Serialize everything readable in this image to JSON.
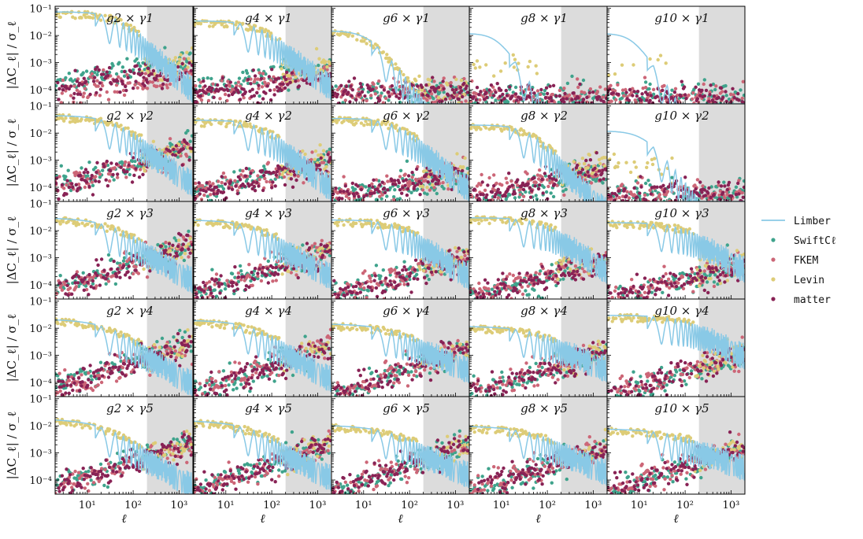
{
  "chart_data": {
    "type": "scatter",
    "layout": "5x5 panel grid",
    "ylabel": "|ΔC_ℓ| / σ_ℓ",
    "xlabel": "ℓ",
    "xscale": "log",
    "yscale": "log",
    "xlim": [
      2,
      2000
    ],
    "ylim": [
      3e-05,
      0.12
    ],
    "x_ticks": [
      {
        "value": 10,
        "label": "10¹"
      },
      {
        "value": 100,
        "label": "10²"
      },
      {
        "value": 1000,
        "label": "10³"
      }
    ],
    "y_ticks": [
      {
        "value": 0.0001,
        "label": "10⁻⁴"
      },
      {
        "value": 0.001,
        "label": "10⁻³"
      },
      {
        "value": 0.01,
        "label": "10⁻²"
      },
      {
        "value": 0.1,
        "label": "10⁻¹"
      }
    ],
    "shaded_region": {
      "ell_min": 200,
      "ell_max": 2000,
      "color": "#dcdcdc"
    },
    "legend": {
      "placement": "right",
      "entries": [
        {
          "key": "limber",
          "label": "Limber",
          "kind": "line",
          "color": "#89c9e6"
        },
        {
          "key": "swift",
          "label": "SwiftCℓ",
          "kind": "point",
          "color": "#3fa38c"
        },
        {
          "key": "fkem",
          "label": "FKEM",
          "kind": "point",
          "color": "#cc6677"
        },
        {
          "key": "levin",
          "label": "Levin",
          "kind": "point",
          "color": "#ddcc77"
        },
        {
          "key": "matter",
          "label": "matter",
          "kind": "point",
          "color": "#882255"
        }
      ]
    },
    "panels": [
      {
        "row": 0,
        "col": 0,
        "title": "g2 × γ1",
        "limber": {
          "a": 0.075,
          "ell0": 50,
          "p": 1.5
        },
        "swift": {
          "A": 0.00028,
          "s": 0.3
        },
        "fkem": {
          "A": 0.00013,
          "s": 0.15
        },
        "levin": {
          "A": 0.0003,
          "s": 0.25
        },
        "matter": {
          "A": 0.00018,
          "s": 0.18
        }
      },
      {
        "row": 0,
        "col": 1,
        "title": "g4 × γ1",
        "limber": {
          "a": 0.035,
          "ell0": 60,
          "p": 1.3
        },
        "swift": {
          "A": 0.00015,
          "s": 0.3
        },
        "fkem": {
          "A": 0.00011,
          "s": 0.25
        },
        "levin": {
          "A": 0.00018,
          "s": 0.3
        },
        "matter": {
          "A": 0.0001,
          "s": 0.25
        }
      },
      {
        "row": 0,
        "col": 2,
        "title": "g6 × γ1",
        "limber": {
          "a": 0.015,
          "ell0": 12,
          "p": 2.0
        },
        "swift": {
          "A": 6e-05,
          "s": 0.05
        },
        "fkem": {
          "A": 7e-05,
          "s": 0.05
        },
        "levin": {
          "A": 8e-05,
          "s": 0.05
        },
        "matter": {
          "A": 7e-05,
          "s": 0.05
        }
      },
      {
        "row": 0,
        "col": 3,
        "title": "g8 × γ1",
        "limber": {
          "a": 0.012,
          "ell0": 8,
          "p": 2.5
        },
        "swift": {
          "A": 5e-05,
          "s": 0.0
        },
        "fkem": {
          "A": 5e-05,
          "s": 0.0
        },
        "levin": {
          "A": 0.0008,
          "s": 0.0
        },
        "matter": {
          "A": 5e-05,
          "s": 0.0
        }
      },
      {
        "row": 0,
        "col": 4,
        "title": "g10 × γ1",
        "limber": {
          "a": 0.012,
          "ell0": 7,
          "p": 2.5
        },
        "swift": {
          "A": 5e-05,
          "s": 0.0
        },
        "fkem": {
          "A": 5e-05,
          "s": 0.0
        },
        "levin": {
          "A": 0.0008,
          "s": 0.0
        },
        "matter": {
          "A": 5e-05,
          "s": 0.0
        }
      },
      {
        "row": 1,
        "col": 0,
        "title": "g2 × γ2",
        "limber": {
          "a": 0.045,
          "ell0": 40,
          "p": 1.2
        },
        "swift": {
          "A": 0.00025,
          "s": 0.5
        },
        "fkem": {
          "A": 0.0002,
          "s": 0.5
        },
        "levin": {
          "A": 0.00022,
          "s": 0.5
        },
        "matter": {
          "A": 0.0002,
          "s": 0.5
        }
      },
      {
        "row": 1,
        "col": 1,
        "title": "g4 × γ2",
        "limber": {
          "a": 0.03,
          "ell0": 70,
          "p": 1.4
        },
        "swift": {
          "A": 0.00012,
          "s": 0.4
        },
        "fkem": {
          "A": 0.00012,
          "s": 0.4
        },
        "levin": {
          "A": 0.00015,
          "s": 0.4
        },
        "matter": {
          "A": 0.0001,
          "s": 0.4
        }
      },
      {
        "row": 1,
        "col": 2,
        "title": "g6 × γ2",
        "limber": {
          "a": 0.035,
          "ell0": 60,
          "p": 1.4
        },
        "swift": {
          "A": 6e-05,
          "s": 0.3
        },
        "fkem": {
          "A": 8e-05,
          "s": 0.3
        },
        "levin": {
          "A": 0.0001,
          "s": 0.3
        },
        "matter": {
          "A": 7e-05,
          "s": 0.3
        }
      },
      {
        "row": 1,
        "col": 3,
        "title": "g8 × γ2",
        "limber": {
          "a": 0.02,
          "ell0": 40,
          "p": 1.6
        },
        "swift": {
          "A": 4e-05,
          "s": 0.45
        },
        "fkem": {
          "A": 8e-05,
          "s": 0.35
        },
        "levin": {
          "A": 0.0001,
          "s": 0.4
        },
        "matter": {
          "A": 6e-05,
          "s": 0.4
        }
      },
      {
        "row": 1,
        "col": 4,
        "title": "g10 × γ2",
        "limber": {
          "a": 0.012,
          "ell0": 12,
          "p": 2.0
        },
        "swift": {
          "A": 5e-05,
          "s": 0.0
        },
        "fkem": {
          "A": 5e-05,
          "s": 0.0
        },
        "levin": {
          "A": 0.0006,
          "s": 0.0
        },
        "matter": {
          "A": 6e-05,
          "s": 0.0
        }
      },
      {
        "row": 2,
        "col": 0,
        "title": "g2 × γ3",
        "limber": {
          "a": 0.03,
          "ell0": 30,
          "p": 1.0
        },
        "swift": {
          "A": 0.0002,
          "s": 0.55
        },
        "fkem": {
          "A": 0.00015,
          "s": 0.55
        },
        "levin": {
          "A": 0.00018,
          "s": 0.55
        },
        "matter": {
          "A": 0.00016,
          "s": 0.55
        }
      },
      {
        "row": 2,
        "col": 1,
        "title": "g4 × γ3",
        "limber": {
          "a": 0.025,
          "ell0": 50,
          "p": 1.0
        },
        "swift": {
          "A": 0.0001,
          "s": 0.55
        },
        "fkem": {
          "A": 0.0001,
          "s": 0.55
        },
        "levin": {
          "A": 0.00012,
          "s": 0.55
        },
        "matter": {
          "A": 9e-05,
          "s": 0.55
        }
      },
      {
        "row": 2,
        "col": 2,
        "title": "g6 × γ3",
        "limber": {
          "a": 0.025,
          "ell0": 90,
          "p": 1.2
        },
        "swift": {
          "A": 8e-05,
          "s": 0.5
        },
        "fkem": {
          "A": 8e-05,
          "s": 0.5
        },
        "levin": {
          "A": 0.0001,
          "s": 0.5
        },
        "matter": {
          "A": 7e-05,
          "s": 0.5
        }
      },
      {
        "row": 2,
        "col": 3,
        "title": "g8 × γ3",
        "limber": {
          "a": 0.03,
          "ell0": 120,
          "p": 1.2
        },
        "swift": {
          "A": 6e-05,
          "s": 0.5
        },
        "fkem": {
          "A": 8e-05,
          "s": 0.45
        },
        "levin": {
          "A": 0.0001,
          "s": 0.45
        },
        "matter": {
          "A": 7e-05,
          "s": 0.45
        }
      },
      {
        "row": 2,
        "col": 4,
        "title": "g10 × γ3",
        "limber": {
          "a": 0.02,
          "ell0": 150,
          "p": 1.1
        },
        "swift": {
          "A": 5e-05,
          "s": 0.45
        },
        "fkem": {
          "A": 7e-05,
          "s": 0.4
        },
        "levin": {
          "A": 0.0001,
          "s": 0.4
        },
        "matter": {
          "A": 6e-05,
          "s": 0.4
        }
      },
      {
        "row": 3,
        "col": 0,
        "title": "g2 × γ4",
        "limber": {
          "a": 0.022,
          "ell0": 25,
          "p": 1.0
        },
        "swift": {
          "A": 0.00018,
          "s": 0.55
        },
        "fkem": {
          "A": 0.00012,
          "s": 0.55
        },
        "levin": {
          "A": 0.00015,
          "s": 0.55
        },
        "matter": {
          "A": 0.00013,
          "s": 0.55
        }
      },
      {
        "row": 3,
        "col": 1,
        "title": "g4 × γ4",
        "limber": {
          "a": 0.02,
          "ell0": 40,
          "p": 1.0
        },
        "swift": {
          "A": 0.0001,
          "s": 0.6
        },
        "fkem": {
          "A": 0.0001,
          "s": 0.6
        },
        "levin": {
          "A": 0.00011,
          "s": 0.6
        },
        "matter": {
          "A": 9e-05,
          "s": 0.6
        }
      },
      {
        "row": 3,
        "col": 2,
        "title": "g6 × γ4",
        "limber": {
          "a": 0.015,
          "ell0": 60,
          "p": 0.8
        },
        "swift": {
          "A": 8e-05,
          "s": 0.6
        },
        "fkem": {
          "A": 8e-05,
          "s": 0.6
        },
        "levin": {
          "A": 9e-05,
          "s": 0.6
        },
        "matter": {
          "A": 8e-05,
          "s": 0.6
        }
      },
      {
        "row": 3,
        "col": 3,
        "title": "g8 × γ4",
        "limber": {
          "a": 0.012,
          "ell0": 90,
          "p": 0.8
        },
        "swift": {
          "A": 7e-05,
          "s": 0.55
        },
        "fkem": {
          "A": 8e-05,
          "s": 0.55
        },
        "levin": {
          "A": 9e-05,
          "s": 0.55
        },
        "matter": {
          "A": 8e-05,
          "s": 0.55
        }
      },
      {
        "row": 3,
        "col": 4,
        "title": "g10 × γ4",
        "limber": {
          "a": 0.03,
          "ell0": 200,
          "p": 1.0
        },
        "swift": {
          "A": 6e-05,
          "s": 0.55
        },
        "fkem": {
          "A": 7e-05,
          "s": 0.55
        },
        "levin": {
          "A": 8e-05,
          "s": 0.55
        },
        "matter": {
          "A": 7e-05,
          "s": 0.55
        }
      },
      {
        "row": 4,
        "col": 0,
        "title": "g2 × γ5",
        "limber": {
          "a": 0.018,
          "ell0": 20,
          "p": 1.0
        },
        "swift": {
          "A": 0.00016,
          "s": 0.55
        },
        "fkem": {
          "A": 0.00011,
          "s": 0.55
        },
        "levin": {
          "A": 0.00013,
          "s": 0.55
        },
        "matter": {
          "A": 0.00012,
          "s": 0.55
        }
      },
      {
        "row": 4,
        "col": 1,
        "title": "g4 × γ5",
        "limber": {
          "a": 0.016,
          "ell0": 30,
          "p": 0.9
        },
        "swift": {
          "A": 0.0001,
          "s": 0.6
        },
        "fkem": {
          "A": 0.0001,
          "s": 0.6
        },
        "levin": {
          "A": 0.00011,
          "s": 0.6
        },
        "matter": {
          "A": 9e-05,
          "s": 0.6
        }
      },
      {
        "row": 4,
        "col": 2,
        "title": "g6 × γ5",
        "limber": {
          "a": 0.011,
          "ell0": 40,
          "p": 0.8
        },
        "swift": {
          "A": 8e-05,
          "s": 0.6
        },
        "fkem": {
          "A": 8e-05,
          "s": 0.6
        },
        "levin": {
          "A": 9e-05,
          "s": 0.6
        },
        "matter": {
          "A": 8e-05,
          "s": 0.6
        }
      },
      {
        "row": 4,
        "col": 3,
        "title": "g8 × γ5",
        "limber": {
          "a": 0.01,
          "ell0": 60,
          "p": 0.8
        },
        "swift": {
          "A": 8e-05,
          "s": 0.55
        },
        "fkem": {
          "A": 9e-05,
          "s": 0.55
        },
        "levin": {
          "A": 0.0001,
          "s": 0.55
        },
        "matter": {
          "A": 9e-05,
          "s": 0.55
        }
      },
      {
        "row": 4,
        "col": 4,
        "title": "g10 × γ5",
        "limber": {
          "a": 0.008,
          "ell0": 100,
          "p": 0.7
        },
        "swift": {
          "A": 8e-05,
          "s": 0.55
        },
        "fkem": {
          "A": 9e-05,
          "s": 0.55
        },
        "levin": {
          "A": 0.0001,
          "s": 0.55
        },
        "matter": {
          "A": 9e-05,
          "s": 0.55
        }
      }
    ]
  }
}
